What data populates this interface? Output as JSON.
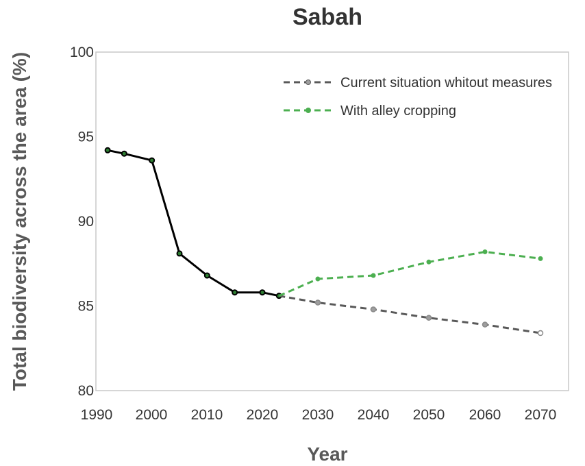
{
  "chart_data": {
    "type": "line",
    "title": "Sabah",
    "xlabel": "Year",
    "ylabel": "Total biodiversity across the area (%)",
    "ylim": [
      80,
      100
    ],
    "yticks": [
      80,
      85,
      90,
      95,
      100
    ],
    "x_categories": [
      "1990",
      "2000",
      "2010",
      "2020",
      "2030",
      "2040",
      "2050",
      "2060",
      "2070"
    ],
    "legend_position": "top-right",
    "grid": false,
    "series": [
      {
        "name": "",
        "color": "#000000",
        "style": "solid",
        "x": [
          1992,
          1995,
          2000,
          2005,
          2010,
          2015,
          2020,
          2023
        ],
        "y": [
          94.2,
          94.0,
          93.6,
          88.1,
          86.8,
          85.8,
          85.8,
          85.6
        ]
      },
      {
        "name": "Current situation whitout measures",
        "color": "#595959",
        "style": "dashed",
        "x": [
          2023,
          2030,
          2040,
          2050,
          2060,
          2070
        ],
        "y": [
          85.6,
          85.2,
          84.8,
          84.3,
          83.9,
          83.4
        ]
      },
      {
        "name": "With alley cropping",
        "color": "#4CAF50",
        "style": "dashed",
        "x": [
          2023,
          2030,
          2040,
          2050,
          2060,
          2070
        ],
        "y": [
          85.6,
          86.6,
          86.8,
          87.6,
          88.2,
          87.8
        ]
      }
    ]
  }
}
